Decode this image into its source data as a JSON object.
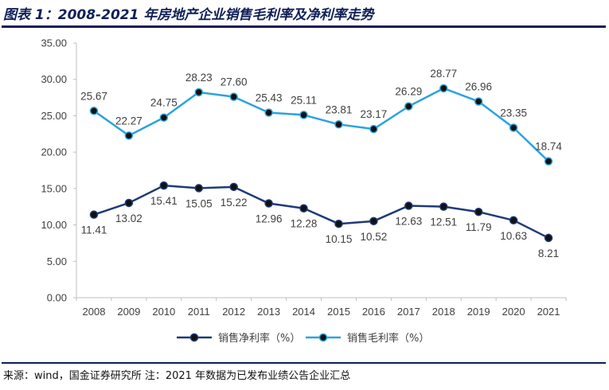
{
  "title": "图表 1：2008-2021 年房地产企业销售毛利率及净利率走势",
  "source": "来源：wind，国金证券研究所 注：2021 年数据为已发布业绩公告企业汇总",
  "chart_data": {
    "type": "line",
    "x": [
      "2008",
      "2009",
      "2010",
      "2011",
      "2012",
      "2013",
      "2014",
      "2015",
      "2016",
      "2017",
      "2018",
      "2019",
      "2020",
      "2021"
    ],
    "yticks": [
      "0.00",
      "5.00",
      "10.00",
      "15.00",
      "20.00",
      "25.00",
      "30.00",
      "35.00"
    ],
    "ylim": [
      0,
      35
    ],
    "grid": false,
    "legend_position": "bottom",
    "series": [
      {
        "name": "销售净利率（%）",
        "color": "#1f3a78",
        "labels_position": "below",
        "values": [
          11.41,
          13.02,
          15.41,
          15.05,
          15.22,
          12.96,
          12.28,
          10.15,
          10.52,
          12.63,
          12.51,
          11.79,
          10.63,
          8.21
        ]
      },
      {
        "name": "销售毛利率（%）",
        "color": "#2aa3df",
        "labels_position": "above",
        "values": [
          25.67,
          22.27,
          24.75,
          28.23,
          27.6,
          25.43,
          25.11,
          23.81,
          23.17,
          26.29,
          28.77,
          26.96,
          23.35,
          18.74
        ]
      }
    ]
  }
}
